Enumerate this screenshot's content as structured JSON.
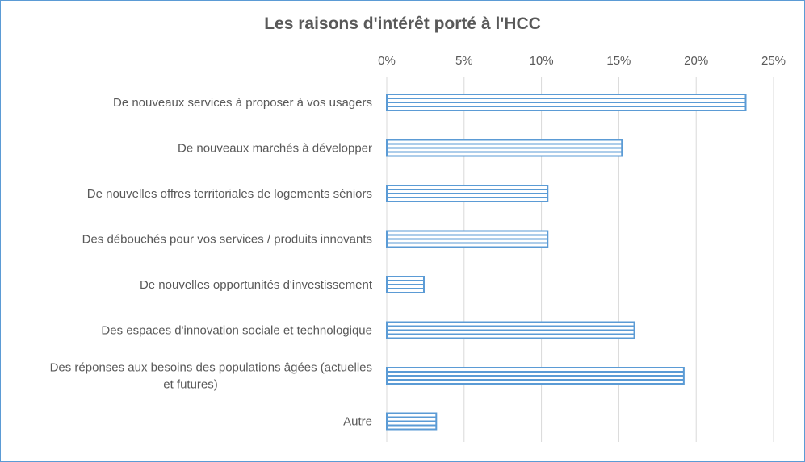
{
  "chart_data": {
    "type": "bar",
    "orientation": "horizontal",
    "title": "Les raisons d'intérêt porté à l'HCC",
    "xlabel": "",
    "ylabel": "",
    "xlim": [
      0,
      0.25
    ],
    "ticks": [
      0,
      0.05,
      0.1,
      0.15,
      0.2,
      0.25
    ],
    "tick_labels": [
      "0%",
      "5%",
      "10%",
      "15%",
      "20%",
      "25%"
    ],
    "axis_position": "top",
    "grid": true,
    "legend": "none",
    "categories": [
      [
        "De nouveaux services à proposer à vos usagers"
      ],
      [
        "De nouveaux marchés à développer"
      ],
      [
        "De nouvelles offres territoriales de logements séniors"
      ],
      [
        "Des débouchés pour vos services / produits innovants"
      ],
      [
        "De nouvelles opportunités d'investissement"
      ],
      [
        "Des espaces d'innovation sociale et technologique"
      ],
      [
        "Des réponses aux besoins des populations âgées (actuelles",
        "et futures)"
      ],
      [
        "Autre"
      ]
    ],
    "values": [
      0.232,
      0.152,
      0.104,
      0.104,
      0.024,
      0.16,
      0.192,
      0.032
    ],
    "colors": {
      "bar_stroke": "#5b9bd5",
      "bar_fill": "#ffffff",
      "grid": "#d9d9d9",
      "text": "#595959"
    }
  }
}
